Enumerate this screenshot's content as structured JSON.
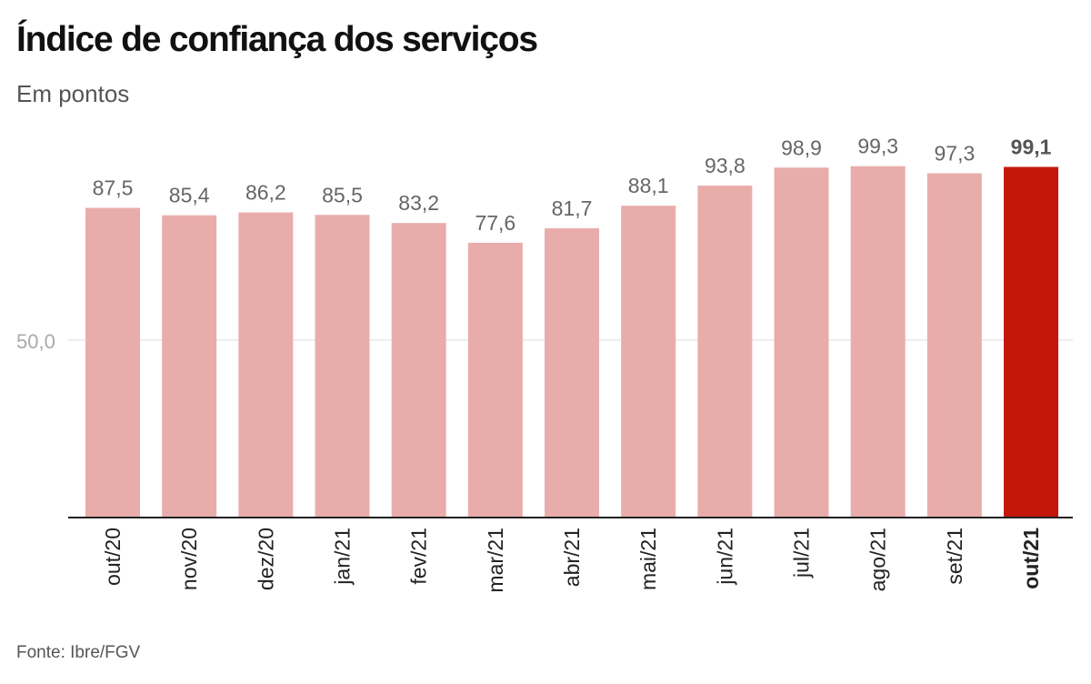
{
  "chart_data": {
    "type": "bar",
    "title": "Índice de confiança dos serviços",
    "subtitle": "Em pontos",
    "source": "Fonte: Ibre/FGV",
    "categories": [
      "out/20",
      "nov/20",
      "dez/20",
      "jan/21",
      "fev/21",
      "mar/21",
      "abr/21",
      "mai/21",
      "jun/21",
      "jul/21",
      "ago/21",
      "set/21",
      "out/21"
    ],
    "values": [
      87.5,
      85.4,
      86.2,
      85.5,
      83.2,
      77.6,
      81.7,
      88.1,
      93.8,
      98.9,
      99.3,
      97.3,
      99.1
    ],
    "data_labels": [
      "87,5",
      "85,4",
      "86,2",
      "85,5",
      "83,2",
      "77,6",
      "81,7",
      "88,1",
      "93,8",
      "98,9",
      "99,3",
      "97,3",
      "99,1"
    ],
    "yticks": [
      {
        "value": 50,
        "label": "50,0"
      }
    ],
    "ylim": [
      0,
      100
    ],
    "grid": true,
    "highlight_index": 12,
    "colors": {
      "bar": "#E8ADAA",
      "highlight": "#C4170C",
      "label": "#666666",
      "highlight_label": "#555555"
    }
  }
}
